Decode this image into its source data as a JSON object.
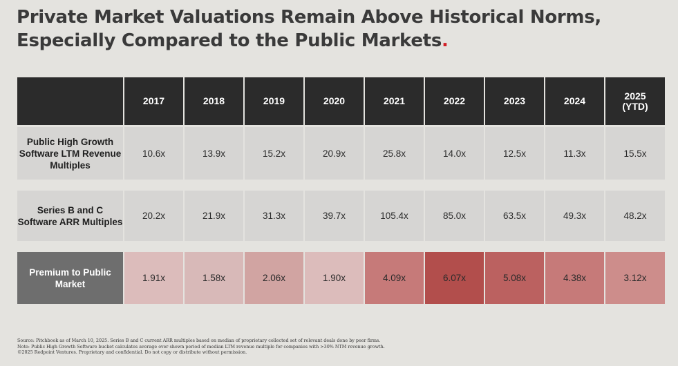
{
  "title": {
    "line1": "Private Market Valuations Remain Above Historical Norms,",
    "line2": "Especially Compared to the Public Markets",
    "accent_dot": "."
  },
  "colors": {
    "header_bg": "#2b2b2b",
    "row_bg": "#d6d5d3",
    "premium_label_bg": "#6e6e6e",
    "accent": "#d21f26"
  },
  "chart_data": {
    "type": "table",
    "columns": [
      "2017",
      "2018",
      "2019",
      "2020",
      "2021",
      "2022",
      "2023",
      "2024",
      "2025 (YTD)"
    ],
    "rows": [
      {
        "label": "Public High Growth Software LTM Revenue Multiples",
        "values": [
          "10.6x",
          "13.9x",
          "15.2x",
          "20.9x",
          "25.8x",
          "14.0x",
          "12.5x",
          "11.3x",
          "15.5x"
        ]
      },
      {
        "label": "Series B and C Software ARR Multiples",
        "values": [
          "20.2x",
          "21.9x",
          "31.3x",
          "39.7x",
          "105.4x",
          "85.0x",
          "63.5x",
          "49.3x",
          "48.2x"
        ]
      },
      {
        "label": "Premium to Public Market",
        "values": [
          "1.91x",
          "1.58x",
          "2.06x",
          "1.90x",
          "4.09x",
          "6.07x",
          "5.08x",
          "4.38x",
          "3.12x"
        ],
        "heat_colors": [
          "#dcbcbb",
          "#d8b9b8",
          "#d1a4a2",
          "#dcbcbb",
          "#c67a79",
          "#b24e4c",
          "#bb6160",
          "#c67a79",
          "#cd8d8b"
        ]
      }
    ]
  },
  "footer": {
    "line1": "Source: Pitchbook as of March 10, 2025. Series B and C current ARR multiples based on median of proprietary collected set of relevant deals done by peer firms.",
    "line2": "Note: Public High Growth Software bucket calculates average over shown period of median LTM revenue multiple for companies with >30% NTM revenue growth.",
    "line3": "©2025 Redpoint Ventures. Proprietary and confidential. Do not copy or distribute without permission."
  }
}
